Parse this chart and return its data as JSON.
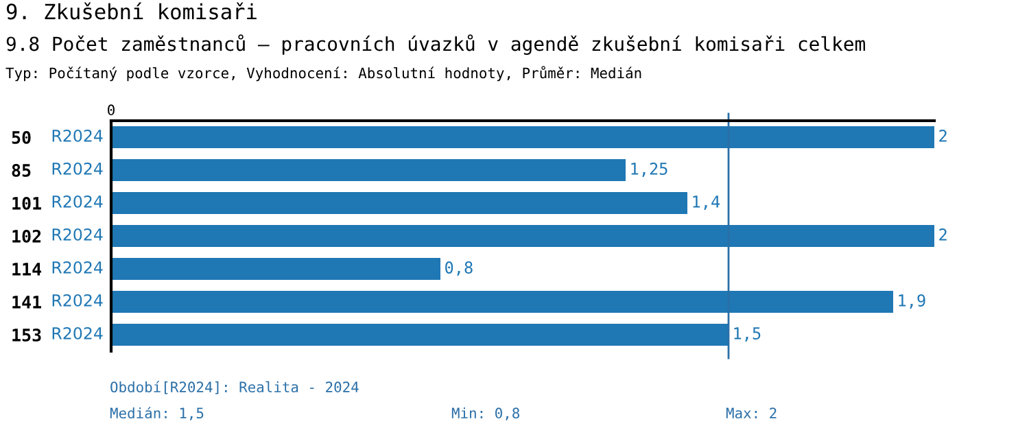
{
  "chart_data": {
    "type": "bar",
    "orientation": "horizontal",
    "title": "9. Zkušební komisaři",
    "subtitle": "9.8 Počet zaměstnanců – pracovních úvazků v agendě zkušební komisaři celkem",
    "xlabel": "Typ: Počítaný podle vzorce, Vyhodnocení: Absolutní hodnoty, Průměr: Medián",
    "categories": [
      "50",
      "85",
      "101",
      "102",
      "114",
      "141",
      "153"
    ],
    "series": [
      {
        "name": "R2024",
        "color": "#1f77b4",
        "values": [
          2,
          1.25,
          1.4,
          2,
          0.8,
          1.9,
          1.5
        ],
        "value_labels": [
          "2",
          "1,25",
          "1,4",
          "2",
          "0,8",
          "1,9",
          "1,5"
        ]
      }
    ],
    "ref_lines": [
      {
        "axis": "x",
        "value": 1.5,
        "color": "#2a6fa8"
      }
    ],
    "annotations": [
      "0",
      "Období[R2024]: Realita - 2024",
      "Medián: 1,5",
      "Min: 0,8",
      "Max: 2"
    ],
    "grid": false
  }
}
